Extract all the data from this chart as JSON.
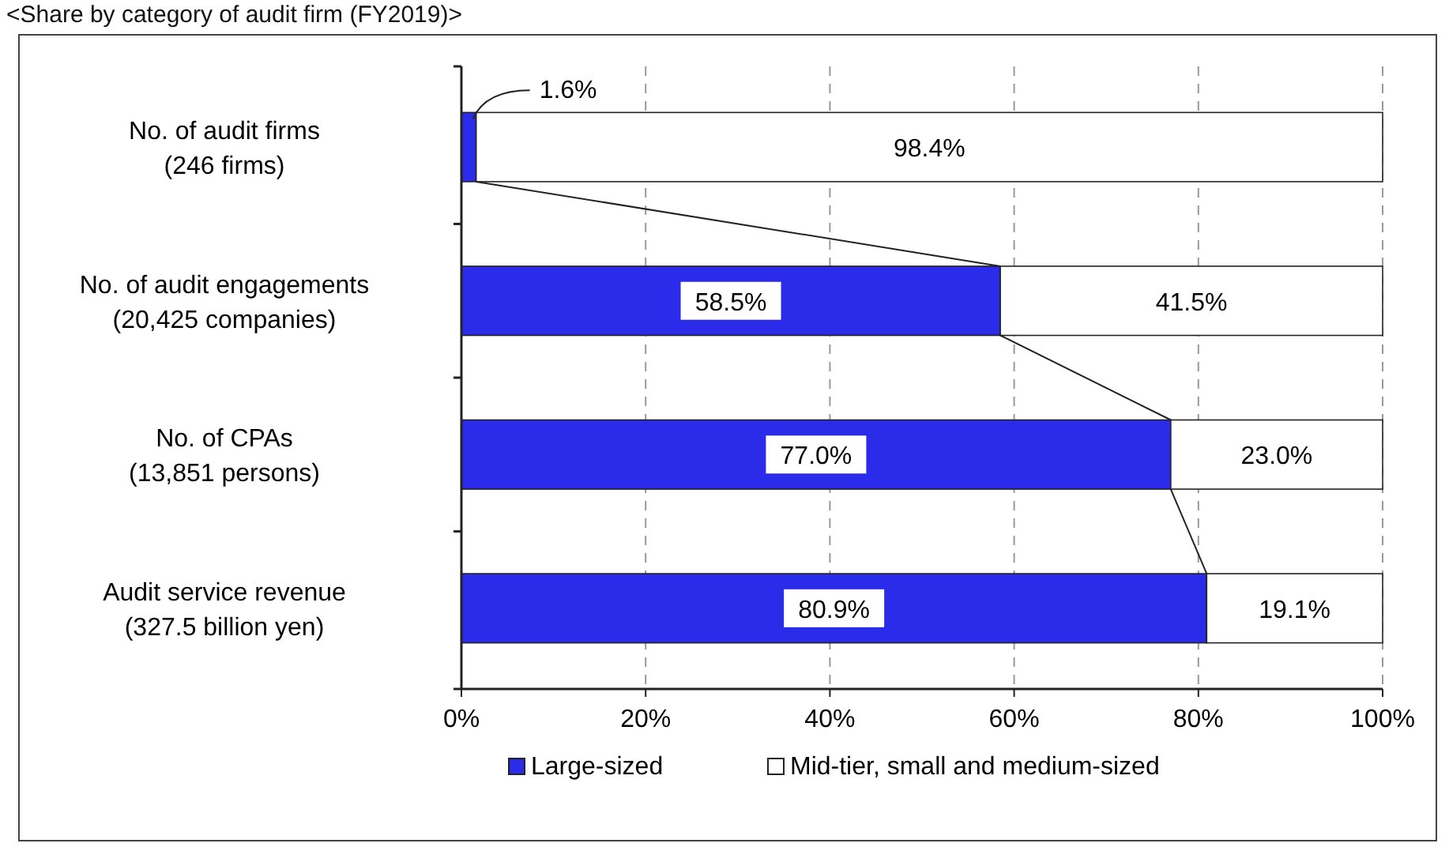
{
  "chart_data": {
    "type": "bar",
    "orientation": "horizontal",
    "stacked": true,
    "title": "<Share by category of audit firm (FY2019)>",
    "categories": [
      "No. of audit firms\n(246 firms)",
      "No. of audit engagements\n(20,425 companies)",
      "No. of CPAs\n(13,851 persons)",
      "Audit service revenue\n(327.5 billion yen)"
    ],
    "series": [
      {
        "name": "Large-sized",
        "color": "#2b2bea",
        "values": [
          1.6,
          58.5,
          77.0,
          80.9
        ],
        "value_labels": [
          "1.6%",
          "58.5%",
          "77.0%",
          "80.9%"
        ]
      },
      {
        "name": "Mid-tier, small and medium-sized",
        "color": "#ffffff",
        "values": [
          98.4,
          41.5,
          23.0,
          19.1
        ],
        "value_labels": [
          "98.4%",
          "41.5%",
          "23.0%",
          "19.1%"
        ]
      }
    ],
    "xlim": [
      0,
      100
    ],
    "xticks": [
      {
        "value": 0,
        "label": "0%"
      },
      {
        "value": 20,
        "label": "20%"
      },
      {
        "value": 40,
        "label": "40%"
      },
      {
        "value": 60,
        "label": "60%"
      },
      {
        "value": 80,
        "label": "80%"
      },
      {
        "value": 100,
        "label": "100%"
      }
    ],
    "grid": "x",
    "legend": "bottom"
  }
}
